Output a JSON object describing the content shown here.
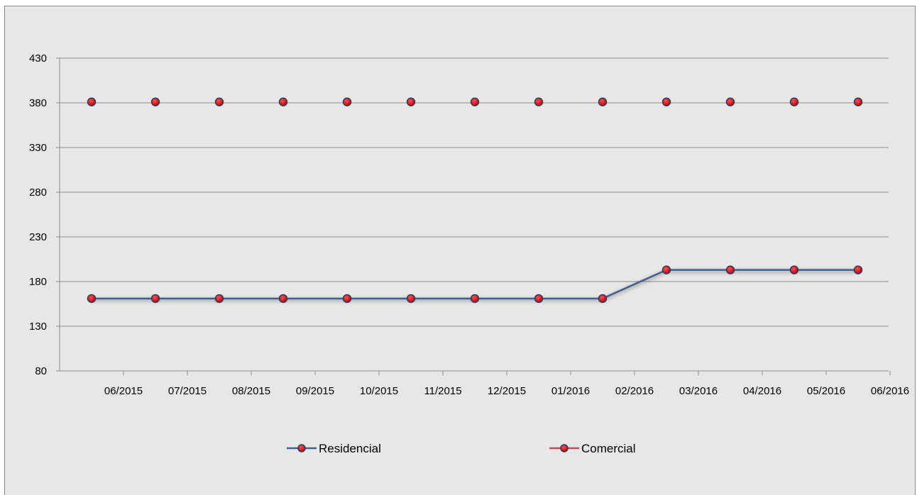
{
  "chart_data": {
    "type": "line",
    "title": "",
    "categories": [
      "06/2015",
      "07/2015",
      "08/2015",
      "09/2015",
      "10/2015",
      "11/2015",
      "12/2015",
      "01/2016",
      "02/2016",
      "03/2016",
      "04/2016",
      "05/2016",
      "06/2016"
    ],
    "series": [
      {
        "name": "Residencial",
        "color": "#3f5f8f",
        "values": [
          161,
          161,
          161,
          161,
          161,
          161,
          161,
          161,
          161,
          193,
          193,
          193,
          193
        ]
      },
      {
        "name": "Comercial",
        "color": "#c0504d",
        "values": [
          381,
          381,
          381,
          381,
          381,
          381,
          381,
          381,
          381,
          381,
          381,
          381,
          381
        ]
      }
    ],
    "marker_color": "#c00000",
    "xlabel": "",
    "ylabel": "",
    "ylim": [
      80,
      430
    ],
    "yticks": [
      80,
      130,
      180,
      230,
      280,
      330,
      380,
      430
    ],
    "grid": true,
    "legend_position": "bottom"
  }
}
